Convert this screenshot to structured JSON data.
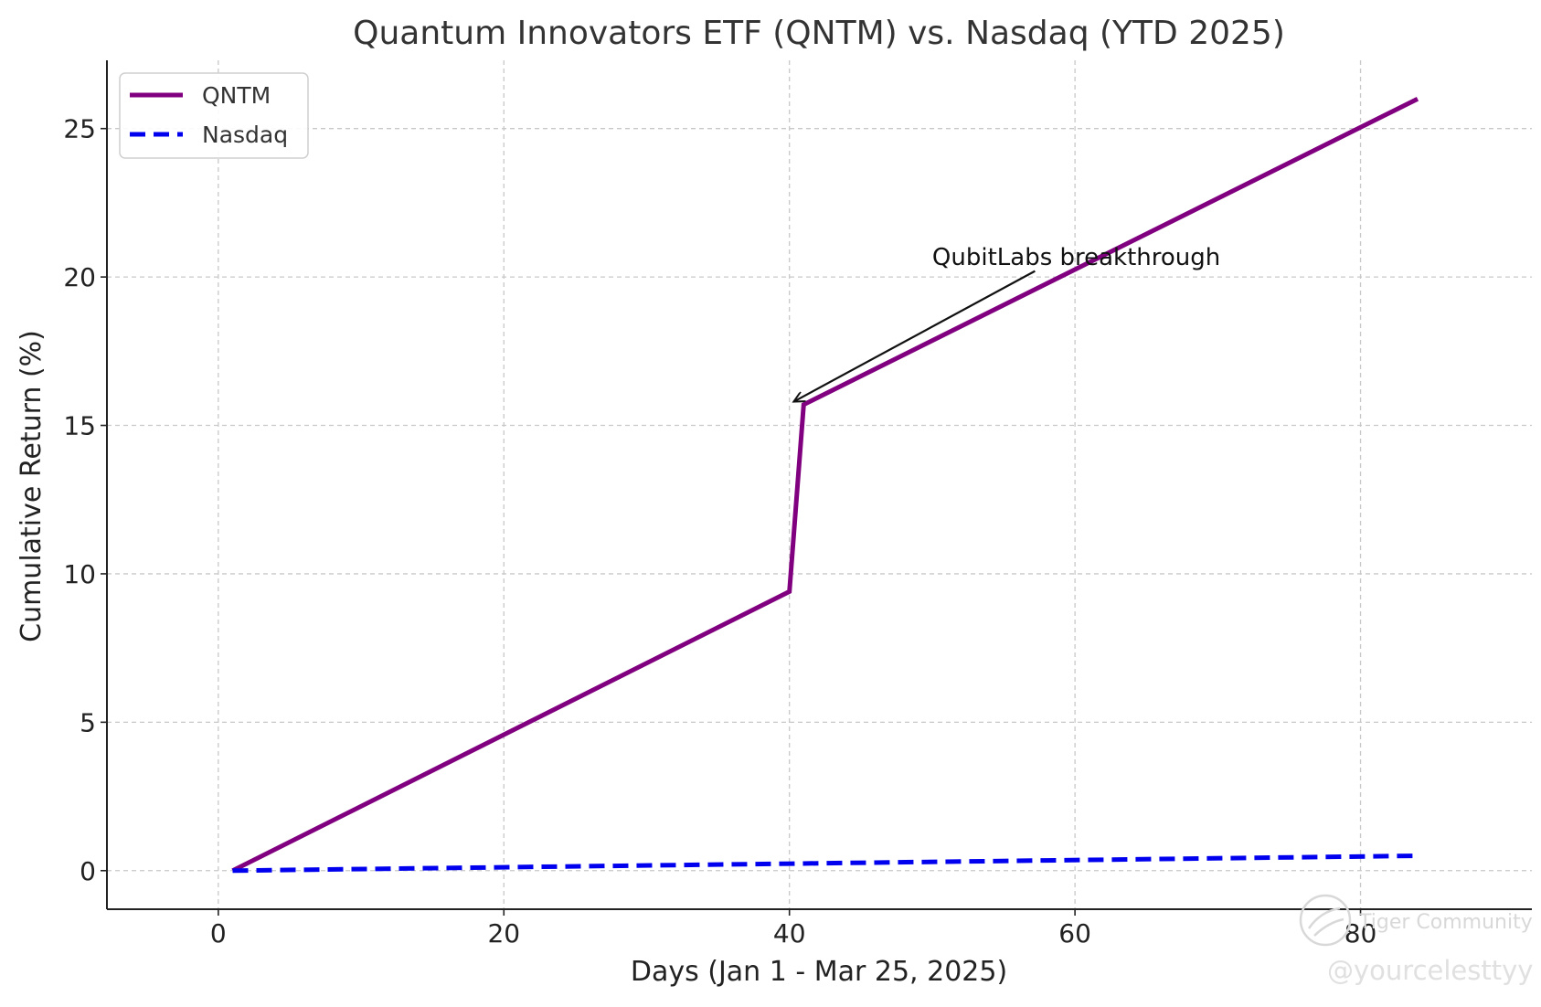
{
  "chart_data": {
    "type": "line",
    "title": "Quantum Innovators ETF (QNTM) vs. Nasdaq (YTD 2025)",
    "xlabel": "Days (Jan 1 - Mar 25, 2025)",
    "ylabel": "Cumulative Return (%)",
    "xlim": [
      -7.8,
      92
    ],
    "ylim": [
      -1.3,
      27.3
    ],
    "xticks": [
      0,
      20,
      40,
      60,
      80
    ],
    "yticks": [
      0,
      5,
      10,
      15,
      20,
      25
    ],
    "xtick_labels": [
      "0",
      "20",
      "40",
      "60",
      "80"
    ],
    "ytick_labels": [
      "0",
      "5",
      "10",
      "15",
      "20",
      "25"
    ],
    "grid": true,
    "legend_position": "top-left",
    "series": [
      {
        "name": "QNTM",
        "color": "#800080",
        "style": "solid",
        "x": [
          1,
          40,
          41,
          84
        ],
        "y": [
          0,
          9.4,
          15.7,
          26.0
        ]
      },
      {
        "name": "Nasdaq",
        "color": "#0000ee",
        "style": "dashed",
        "x": [
          1,
          84
        ],
        "y": [
          0,
          0.5
        ]
      }
    ],
    "annotations": [
      {
        "text": "QubitLabs breakthrough",
        "text_x": 50,
        "text_y": 20.4,
        "arrow_from_x": 57.2,
        "arrow_from_y": 20.2,
        "arrow_to_x": 40.3,
        "arrow_to_y": 15.8
      }
    ]
  },
  "watermark": {
    "brand": "Tiger Community",
    "handle": "@yourcelesttyy",
    "icon": "tiger-logo-icon"
  }
}
